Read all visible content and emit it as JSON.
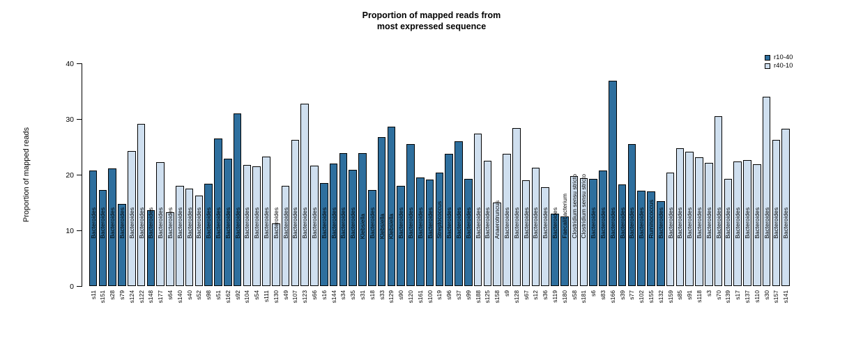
{
  "chart_data": {
    "type": "bar",
    "title_lines": [
      "Proportion of mapped reads from",
      "most expressed sequence"
    ],
    "ylabel": "Proportion of mapped reads",
    "ylim": [
      0,
      40
    ],
    "yticks": [
      0,
      10,
      20,
      30,
      40
    ],
    "grid": false,
    "legend_position": "top-right",
    "groups": [
      {
        "name": "r10-40",
        "color": "#2e6f9e"
      },
      {
        "name": "r40-10",
        "color": "#cfdfef"
      }
    ],
    "bars": [
      {
        "sample": "s11",
        "genus": "Bacteroides",
        "value": 20.7,
        "group": "r10-40"
      },
      {
        "sample": "s151",
        "genus": "Bacteroides",
        "value": 17.2,
        "group": "r10-40"
      },
      {
        "sample": "s28",
        "genus": "Bacteroides",
        "value": 21.1,
        "group": "r10-40"
      },
      {
        "sample": "s79",
        "genus": "Bacteroides",
        "value": 14.8,
        "group": "r10-40"
      },
      {
        "sample": "s124",
        "genus": "Bacteroides",
        "value": 24.2,
        "group": "r40-10"
      },
      {
        "sample": "s122",
        "genus": "Bacteroides",
        "value": 29.1,
        "group": "r40-10"
      },
      {
        "sample": "s148",
        "genus": "Bacteroides",
        "value": 13.6,
        "group": "r10-40"
      },
      {
        "sample": "s177",
        "genus": "Bacteroides",
        "value": 22.2,
        "group": "r40-10"
      },
      {
        "sample": "s64",
        "genus": "Bacteroides",
        "value": 13.2,
        "group": "r40-10"
      },
      {
        "sample": "s140",
        "genus": "Bacteroides",
        "value": 18.0,
        "group": "r40-10"
      },
      {
        "sample": "s40",
        "genus": "Bacteroides",
        "value": 17.5,
        "group": "r40-10"
      },
      {
        "sample": "s52",
        "genus": "Bacteroides",
        "value": 16.3,
        "group": "r40-10"
      },
      {
        "sample": "s98",
        "genus": "Bacteroides",
        "value": 18.4,
        "group": "r10-40"
      },
      {
        "sample": "s51",
        "genus": "Bacteroides",
        "value": 26.5,
        "group": "r10-40"
      },
      {
        "sample": "s162",
        "genus": "Bacteroides",
        "value": 22.9,
        "group": "r10-40"
      },
      {
        "sample": "s92",
        "genus": "Bacteroides",
        "value": 31.0,
        "group": "r10-40"
      },
      {
        "sample": "s104",
        "genus": "Bacteroides",
        "value": 21.8,
        "group": "r40-10"
      },
      {
        "sample": "s54",
        "genus": "Bacteroides",
        "value": 21.5,
        "group": "r40-10"
      },
      {
        "sample": "s111",
        "genus": "Bacteroides",
        "value": 23.2,
        "group": "r40-10"
      },
      {
        "sample": "s130",
        "genus": "Bacteroides",
        "value": 11.2,
        "group": "r40-10"
      },
      {
        "sample": "s49",
        "genus": "Bacteroides",
        "value": 18.0,
        "group": "r40-10"
      },
      {
        "sample": "s107",
        "genus": "Bacteroides",
        "value": 26.2,
        "group": "r40-10"
      },
      {
        "sample": "s123",
        "genus": "Bacteroides",
        "value": 32.8,
        "group": "r40-10"
      },
      {
        "sample": "s66",
        "genus": "Bacteroides",
        "value": 21.6,
        "group": "r40-10"
      },
      {
        "sample": "s16",
        "genus": "Bacteroides",
        "value": 18.5,
        "group": "r10-40"
      },
      {
        "sample": "s144",
        "genus": "Bacteroides",
        "value": 22.0,
        "group": "r10-40"
      },
      {
        "sample": "s34",
        "genus": "Bacteroides",
        "value": 23.9,
        "group": "r10-40"
      },
      {
        "sample": "s35",
        "genus": "Bacteroides",
        "value": 20.9,
        "group": "r10-40"
      },
      {
        "sample": "s31",
        "genus": "Klebsiella",
        "value": 23.9,
        "group": "r10-40"
      },
      {
        "sample": "s18",
        "genus": "Bacteroides",
        "value": 17.3,
        "group": "r10-40"
      },
      {
        "sample": "s33",
        "genus": "Klebsiella",
        "value": 26.7,
        "group": "r10-40"
      },
      {
        "sample": "s129",
        "genus": "Klebsiella",
        "value": 28.6,
        "group": "r10-40"
      },
      {
        "sample": "s90",
        "genus": "Bacteroides",
        "value": 18.0,
        "group": "r10-40"
      },
      {
        "sample": "s120",
        "genus": "Bacteroides",
        "value": 25.5,
        "group": "r10-40"
      },
      {
        "sample": "s161",
        "genus": "Bacteroides",
        "value": 19.5,
        "group": "r10-40"
      },
      {
        "sample": "s100",
        "genus": "Bacteroides",
        "value": 19.1,
        "group": "r10-40"
      },
      {
        "sample": "s19",
        "genus": "Streptococcus",
        "value": 20.4,
        "group": "r10-40"
      },
      {
        "sample": "s96",
        "genus": "Bacteroides",
        "value": 23.8,
        "group": "r10-40"
      },
      {
        "sample": "s37",
        "genus": "Bacteroides",
        "value": 26.0,
        "group": "r10-40"
      },
      {
        "sample": "s99",
        "genus": "Bacteroides",
        "value": 19.3,
        "group": "r10-40"
      },
      {
        "sample": "s188",
        "genus": "Bacteroides",
        "value": 27.4,
        "group": "r40-10"
      },
      {
        "sample": "s125",
        "genus": "Bacteroides",
        "value": 22.5,
        "group": "r40-10"
      },
      {
        "sample": "s158",
        "genus": "Anaerotruncus",
        "value": 15.0,
        "group": "r40-10"
      },
      {
        "sample": "s9",
        "genus": "Bacteroides",
        "value": 23.8,
        "group": "r40-10"
      },
      {
        "sample": "s128",
        "genus": "Bacteroides",
        "value": 28.4,
        "group": "r40-10"
      },
      {
        "sample": "s67",
        "genus": "Bacteroides",
        "value": 19.0,
        "group": "r40-10"
      },
      {
        "sample": "s12",
        "genus": "Bacteroides",
        "value": 21.2,
        "group": "r40-10"
      },
      {
        "sample": "s36",
        "genus": "Bacteroides",
        "value": 17.8,
        "group": "r40-10"
      },
      {
        "sample": "s119",
        "genus": "Bacteroides",
        "value": 13.0,
        "group": "r10-40"
      },
      {
        "sample": "s180",
        "genus": "Faecalibacterium",
        "value": 12.5,
        "group": "r10-40"
      },
      {
        "sample": "s58",
        "genus": "Clostridium sensu stricto",
        "value": 19.7,
        "group": "r40-10"
      },
      {
        "sample": "s181",
        "genus": "Clostridium sensu stricto",
        "value": 19.4,
        "group": "r40-10"
      },
      {
        "sample": "s6",
        "genus": "Bacteroides",
        "value": 19.3,
        "group": "r10-40"
      },
      {
        "sample": "s83",
        "genus": "Bacteroides",
        "value": 20.7,
        "group": "r10-40"
      },
      {
        "sample": "s166",
        "genus": "Bacteroides",
        "value": 36.9,
        "group": "r10-40"
      },
      {
        "sample": "s39",
        "genus": "Bacteroides",
        "value": 18.2,
        "group": "r10-40"
      },
      {
        "sample": "s77",
        "genus": "Bacteroides",
        "value": 25.5,
        "group": "r10-40"
      },
      {
        "sample": "s102",
        "genus": "Bacteroides",
        "value": 17.1,
        "group": "r10-40"
      },
      {
        "sample": "s155",
        "genus": "Ruminococcus",
        "value": 17.0,
        "group": "r10-40"
      },
      {
        "sample": "s132",
        "genus": "Bacteroides",
        "value": 15.2,
        "group": "r10-40"
      },
      {
        "sample": "s159",
        "genus": "Bacteroides",
        "value": 20.4,
        "group": "r40-10"
      },
      {
        "sample": "s85",
        "genus": "Bacteroides",
        "value": 24.8,
        "group": "r40-10"
      },
      {
        "sample": "s91",
        "genus": "Bacteroides",
        "value": 24.1,
        "group": "r40-10"
      },
      {
        "sample": "s118",
        "genus": "Bacteroides",
        "value": 23.1,
        "group": "r40-10"
      },
      {
        "sample": "s3",
        "genus": "Bacteroides",
        "value": 22.1,
        "group": "r40-10"
      },
      {
        "sample": "s70",
        "genus": "Bacteroides",
        "value": 30.5,
        "group": "r40-10"
      },
      {
        "sample": "s139",
        "genus": "Bacteroides",
        "value": 19.2,
        "group": "r40-10"
      },
      {
        "sample": "s17",
        "genus": "Bacteroides",
        "value": 22.4,
        "group": "r40-10"
      },
      {
        "sample": "s137",
        "genus": "Bacteroides",
        "value": 22.6,
        "group": "r40-10"
      },
      {
        "sample": "s110",
        "genus": "Bacteroides",
        "value": 21.9,
        "group": "r40-10"
      },
      {
        "sample": "s30",
        "genus": "Bacteroides",
        "value": 34.0,
        "group": "r40-10"
      },
      {
        "sample": "s157",
        "genus": "Bacteroides",
        "value": 26.3,
        "group": "r40-10"
      },
      {
        "sample": "s141",
        "genus": "Bacteroides",
        "value": 28.3,
        "group": "r40-10"
      }
    ]
  }
}
